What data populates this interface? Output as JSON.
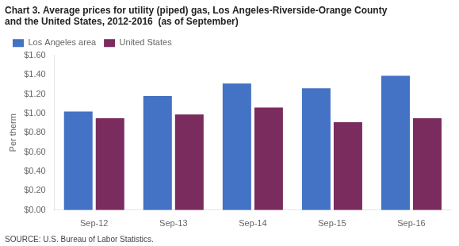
{
  "chart_data": {
    "type": "bar",
    "title": [
      "Chart 3. Average prices for utility (piped) gas, Los Angeles-Riverside-Orange County",
      "and the United States, 2012-2016  (as of September)"
    ],
    "ylabel": "Per therm",
    "annotations": [
      "SOURCE: U.S. Bureau of Labor Statistics."
    ],
    "categories": [
      "Sep-12",
      "Sep-13",
      "Sep-14",
      "Sep-15",
      "Sep-16"
    ],
    "series": [
      {
        "name": "Los Angeles area",
        "color": "#4472C4",
        "values": [
          1.02,
          1.18,
          1.31,
          1.26,
          1.39
        ]
      },
      {
        "name": "United States",
        "color": "#7B2C5E",
        "values": [
          0.95,
          0.99,
          1.06,
          0.91,
          0.95
        ]
      }
    ],
    "ylim": [
      0,
      1.6
    ],
    "yticks": [
      {
        "value": 0.0,
        "label": "$0.00"
      },
      {
        "value": 0.2,
        "label": "$0.20"
      },
      {
        "value": 0.4,
        "label": "$0.40"
      },
      {
        "value": 0.6,
        "label": "$0.60"
      },
      {
        "value": 0.8,
        "label": "$0.80"
      },
      {
        "value": 1.0,
        "label": "$1.00"
      },
      {
        "value": 1.2,
        "label": "$1.20"
      },
      {
        "value": 1.4,
        "label": "$1.40"
      },
      {
        "value": 1.6,
        "label": "$1.60"
      }
    ],
    "grid": false,
    "legend": "upper left"
  }
}
